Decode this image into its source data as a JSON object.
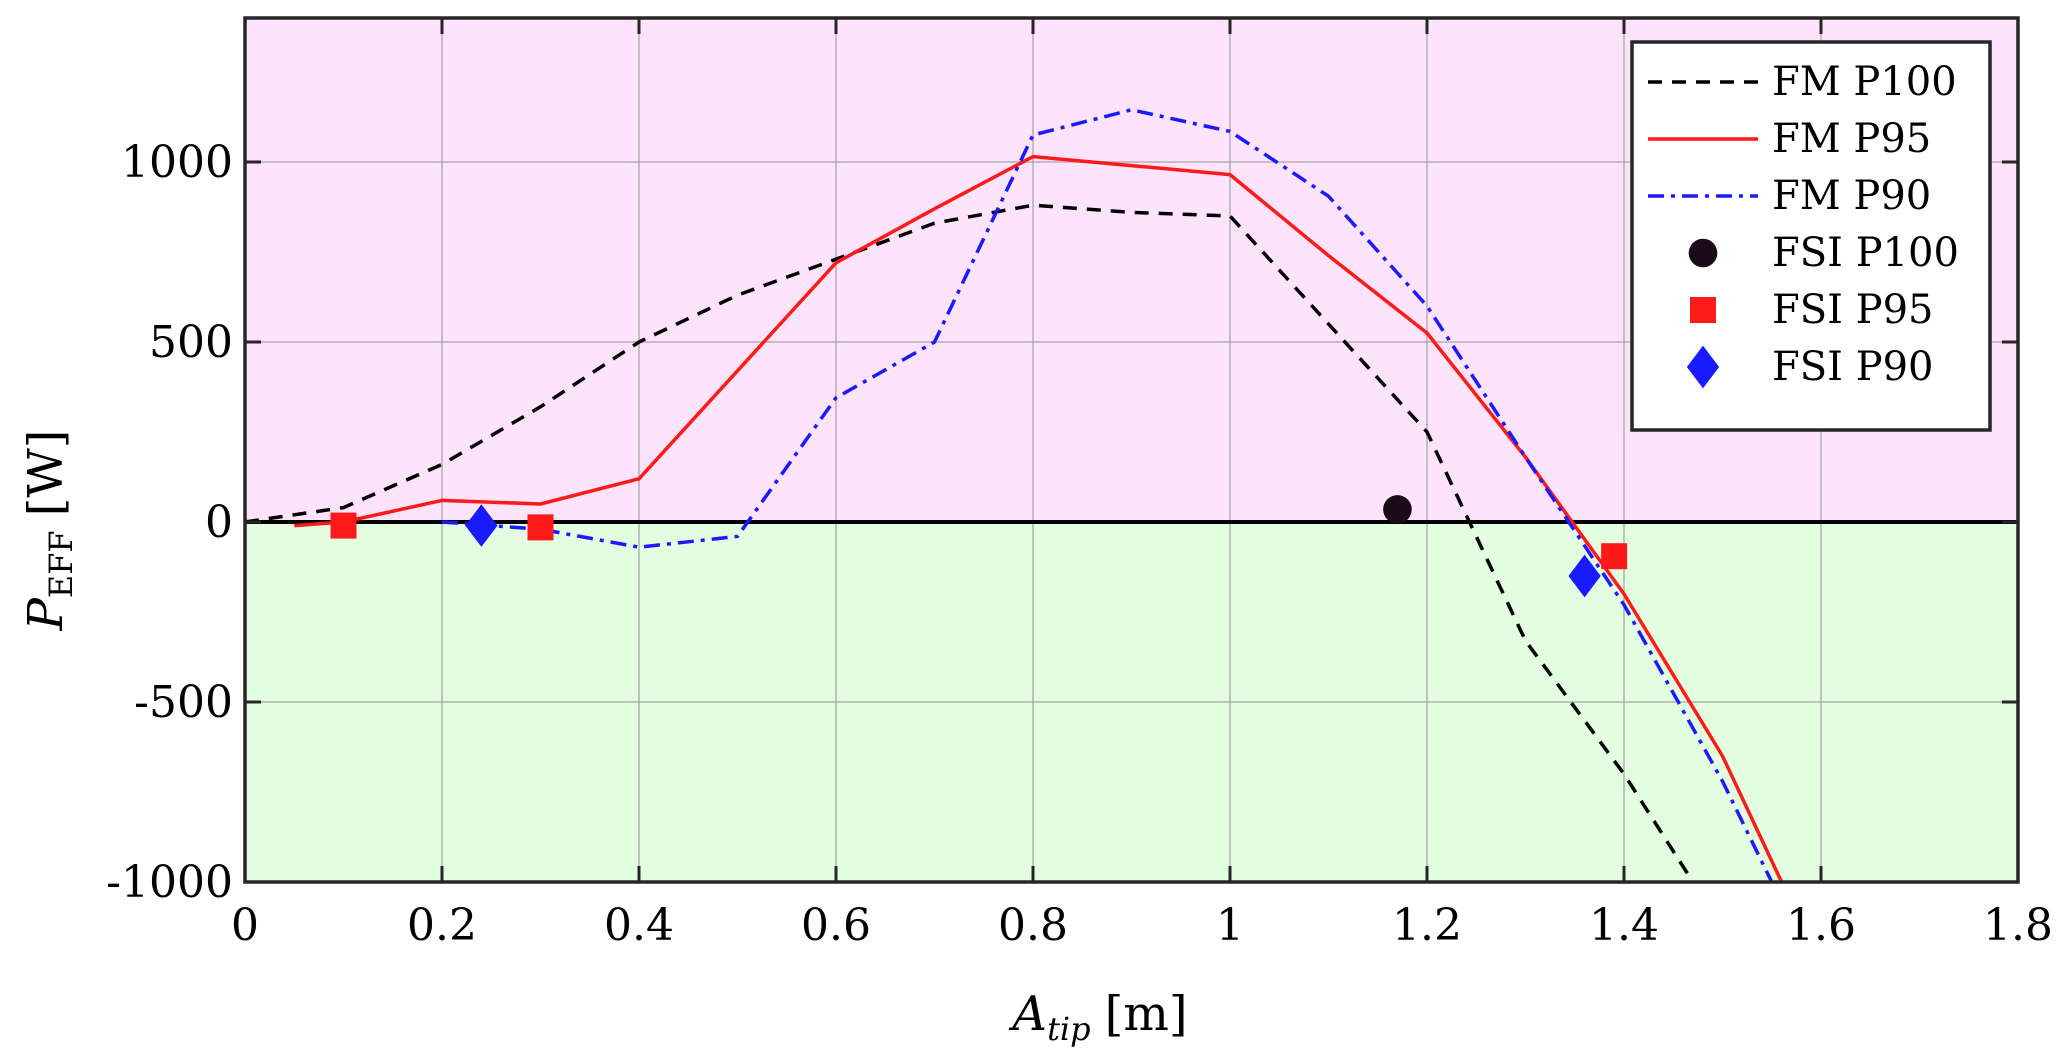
{
  "chart_data": {
    "type": "line",
    "title": "",
    "xlabel": {
      "main": "A",
      "sub": "tip",
      "unit": "[m]"
    },
    "ylabel": {
      "main": "P",
      "sub": "EFF",
      "unit": "[W]"
    },
    "xlim": [
      0,
      1.8
    ],
    "ylim": [
      -1000,
      1400
    ],
    "x_ticks": [
      0,
      0.2,
      0.4,
      0.6,
      0.8,
      1.0,
      1.2,
      1.4,
      1.6,
      1.8
    ],
    "x_tick_labels": [
      "0",
      "0.2",
      "0.4",
      "0.6",
      "0.8",
      "1",
      "1.2",
      "1.4",
      "1.6",
      "1.8"
    ],
    "y_ticks": [
      -1000,
      -500,
      0,
      500,
      1000
    ],
    "y_tick_labels": [
      "-1000",
      "-500",
      "0",
      "500",
      "1000"
    ],
    "grid": true,
    "background_regions": [
      {
        "name": "positive",
        "from": 0,
        "to": 1400,
        "color": "#fde3fb"
      },
      {
        "name": "negative",
        "from": -1000,
        "to": 0,
        "color": "#e2fde0"
      }
    ],
    "zero_line": true,
    "legend_position": "top-right",
    "series": [
      {
        "name": "FM P100",
        "kind": "line",
        "style": "dashed",
        "color": "#000000",
        "x": [
          0,
          0.1,
          0.2,
          0.3,
          0.4,
          0.5,
          0.6,
          0.7,
          0.8,
          0.9,
          1.0,
          1.1,
          1.2,
          1.3,
          1.4,
          1.47
        ],
        "y": [
          0,
          40,
          160,
          320,
          500,
          630,
          730,
          830,
          880,
          860,
          850,
          550,
          250,
          -330,
          -700,
          -1000
        ]
      },
      {
        "name": "FM P95",
        "kind": "line",
        "style": "solid",
        "color": "#ff1a1a",
        "x": [
          0.05,
          0.1,
          0.2,
          0.3,
          0.4,
          0.5,
          0.6,
          0.7,
          0.8,
          0.9,
          1.0,
          1.1,
          1.2,
          1.3,
          1.4,
          1.5,
          1.56
        ],
        "y": [
          -10,
          0,
          60,
          50,
          120,
          420,
          720,
          870,
          1015,
          990,
          965,
          740,
          525,
          180,
          -200,
          -650,
          -1000
        ]
      },
      {
        "name": "FM P90",
        "kind": "line",
        "style": "dashdot",
        "color": "#1a1aff",
        "x": [
          0.2,
          0.3,
          0.4,
          0.5,
          0.6,
          0.7,
          0.8,
          0.9,
          1.0,
          1.1,
          1.2,
          1.3,
          1.4,
          1.5,
          1.55
        ],
        "y": [
          0,
          -20,
          -70,
          -40,
          345,
          500,
          1075,
          1145,
          1085,
          905,
          600,
          180,
          -230,
          -720,
          -1000
        ]
      },
      {
        "name": "FSI P100",
        "kind": "marker",
        "marker": "circle",
        "color": "#000000",
        "points": [
          {
            "x": 1.17,
            "y": 35
          }
        ]
      },
      {
        "name": "FSI P95",
        "kind": "marker",
        "marker": "square",
        "color": "#ff1a1a",
        "points": [
          {
            "x": 0.1,
            "y": -10
          },
          {
            "x": 0.3,
            "y": -15
          },
          {
            "x": 1.39,
            "y": -95
          }
        ]
      },
      {
        "name": "FSI P90",
        "kind": "marker",
        "marker": "diamond",
        "color": "#1a1aff",
        "points": [
          {
            "x": 0.24,
            "y": -10
          },
          {
            "x": 1.36,
            "y": -150
          }
        ]
      }
    ]
  }
}
